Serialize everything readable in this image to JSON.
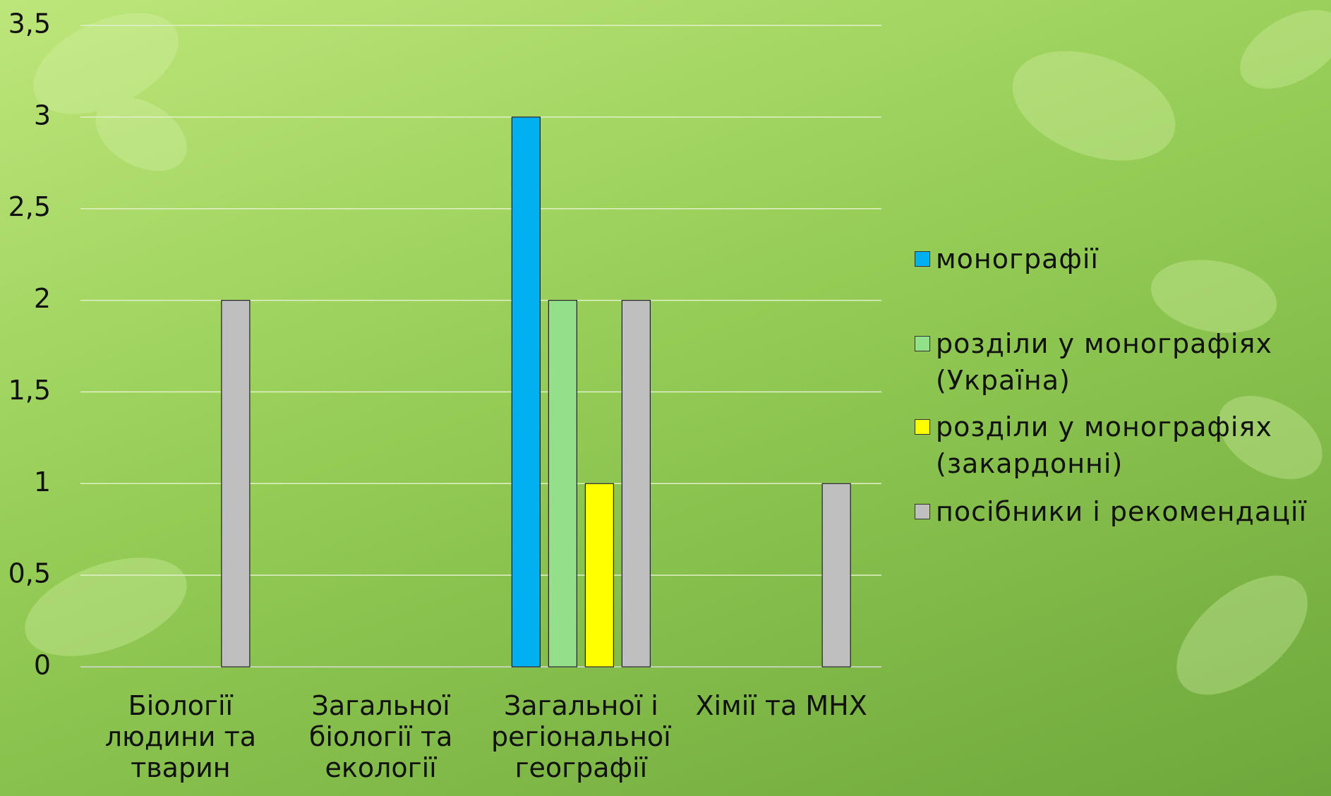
{
  "chart_data": {
    "type": "bar",
    "categories": [
      "Біології людини та тварин",
      "Загальної біології та екології",
      "Загальної і регіональної географії",
      "Хімії та МНХ"
    ],
    "series": [
      {
        "name": "монографії",
        "color": "#00b0f0",
        "values": [
          0,
          0,
          3,
          0
        ]
      },
      {
        "name": "розділи у монографіях (Україна)",
        "color": "#92e08a",
        "values": [
          0,
          0,
          2,
          0
        ]
      },
      {
        "name": "розділи у монографіях (закардонні)",
        "color": "#ffff00",
        "values": [
          0,
          0,
          1,
          0
        ]
      },
      {
        "name": "посібники і рекомендації",
        "color": "#bfbfbf",
        "values": [
          2,
          0,
          2,
          1
        ]
      }
    ],
    "ylim": [
      0,
      3.5
    ],
    "yticks": [
      0,
      {
        "value": 0.5,
        "label": "0,5"
      },
      1,
      {
        "value": 1.5,
        "label": "1,5"
      },
      2,
      {
        "value": 2.5,
        "label": "2,5"
      },
      3,
      {
        "value": 3.5,
        "label": "3,5"
      }
    ],
    "grid": true,
    "legend": "right"
  }
}
